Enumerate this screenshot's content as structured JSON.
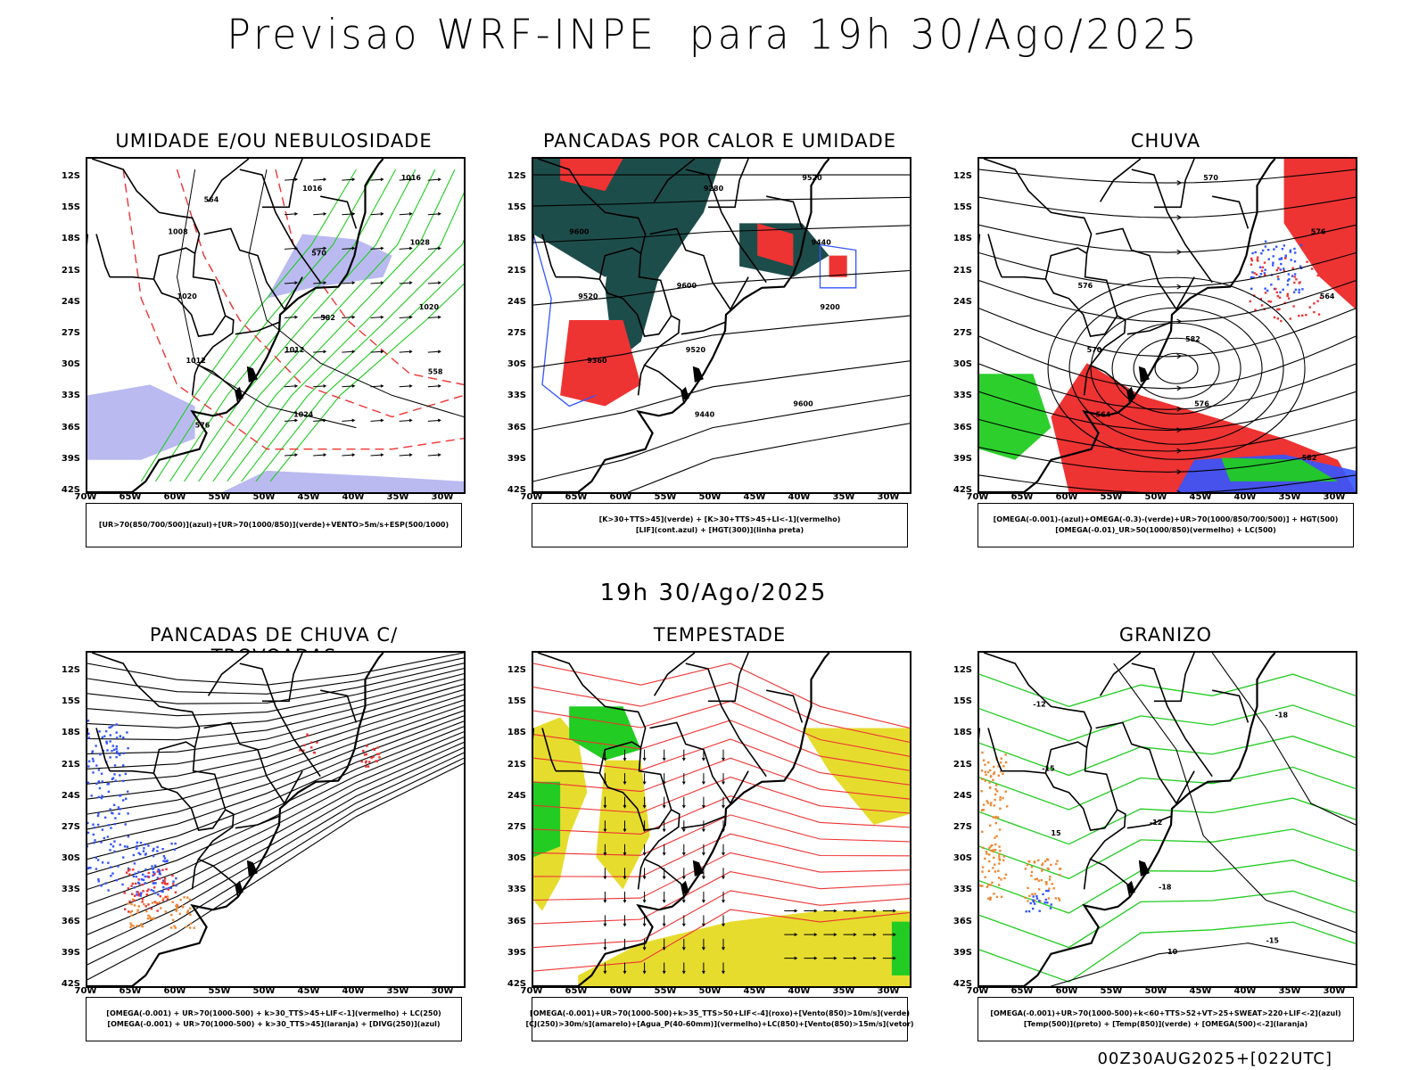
{
  "page": {
    "title": "Previsao WRF-INPE  para 19h 30/Ago/2025",
    "mid_title": "19h 30/Ago/2025",
    "footer": "00Z30AUG2025+[022UTC]"
  },
  "axes": {
    "lat_labels": [
      "12S",
      "15S",
      "18S",
      "21S",
      "24S",
      "27S",
      "30S",
      "33S",
      "36S",
      "39S",
      "42S"
    ],
    "lon_labels": [
      "70W",
      "65W",
      "60W",
      "55W",
      "50W",
      "45W",
      "40W",
      "35W",
      "30W"
    ]
  },
  "panels": [
    {
      "title": "UMIDADE E/OU NEBULOSIDADE",
      "legend": [
        "[UR>70(850/700/500)](azul)+[UR>70(1000/850)](verde)+VENTO>5m/s+ESP(500/1000)"
      ],
      "contour_labels": [
        "1008",
        "1012",
        "1016",
        "1020",
        "1024",
        "1028",
        "1012",
        "1016",
        "1020",
        "576",
        "570",
        "558",
        "564",
        "582"
      ]
    },
    {
      "title": "PANCADAS POR CALOR E UMIDADE",
      "legend": [
        "[K>30+TTS>45](verde) + [K>30+TTS>45+LI<-1](vermelho)",
        "[LIF](cont.azul) + [HGT(300)](linha preta)"
      ],
      "contour_labels": [
        "9600",
        "9600",
        "9600",
        "9520",
        "9520",
        "9520",
        "9440",
        "9440",
        "9360",
        "9280",
        "9200"
      ]
    },
    {
      "title": "CHUVA",
      "legend": [
        "[OMEGA(-0.001)-(azul)+OMEGA(-0.3)-(verde)+UR>70(1000/850/700/500)] + HGT(500)",
        "[OMEGA(-0.01)_UR>50(1000/850)(vermelho) + LC(500)"
      ],
      "contour_labels": [
        "582",
        "582",
        "576",
        "576",
        "576",
        "570",
        "570",
        "564",
        "564"
      ]
    },
    {
      "title": "PANCADAS DE CHUVA C/ TROVOADAS",
      "legend": [
        "[OMEGA(-0.001) + UR>70(1000-500) + k>30_TTS>45+LIF<-1](vermelho) + LC(250)",
        "[OMEGA(-0.001) + UR>70(1000-500) + k>30_TTS>45](laranja) + [DIVG(250)](azul)"
      ],
      "contour_labels": []
    },
    {
      "title": "TEMPESTADE",
      "legend": [
        "[OMEGA(-0.001)+UR>70(1000-500)+k>35_TTS>50+LIF<-4](roxo)+[Vento(850)>10m/s](verde)",
        "[CJ(250)>30m/s](amarelo)+[Agua_P(40-60mm)](vermelho)+LC(850)+[Vento(850)>15m/s](vetor)"
      ],
      "contour_labels": []
    },
    {
      "title": "GRANIZO",
      "legend": [
        "[OMEGA(-0.001)+UR>70(1000-500)+k<60+TTS>52+VT>25+SWEAT>220+LIF<-2](azul)",
        "[Temp(500)](preto) + [Temp(850)](verde) + [OMEGA(500)<-2](laranja)"
      ],
      "contour_labels": [
        "-12",
        "-12",
        "-15",
        "-15",
        "-18",
        "-18",
        "15",
        "10"
      ]
    }
  ],
  "colors": {
    "humidity_blue": "#b3b3f0",
    "humidity_green": "#22cc22",
    "heat_green": "#1d4d4a",
    "red": "#ee3333",
    "yellow": "#e6dc2e",
    "orange": "#ee8833",
    "blue": "#3355ff",
    "contour_black": "#000000"
  }
}
